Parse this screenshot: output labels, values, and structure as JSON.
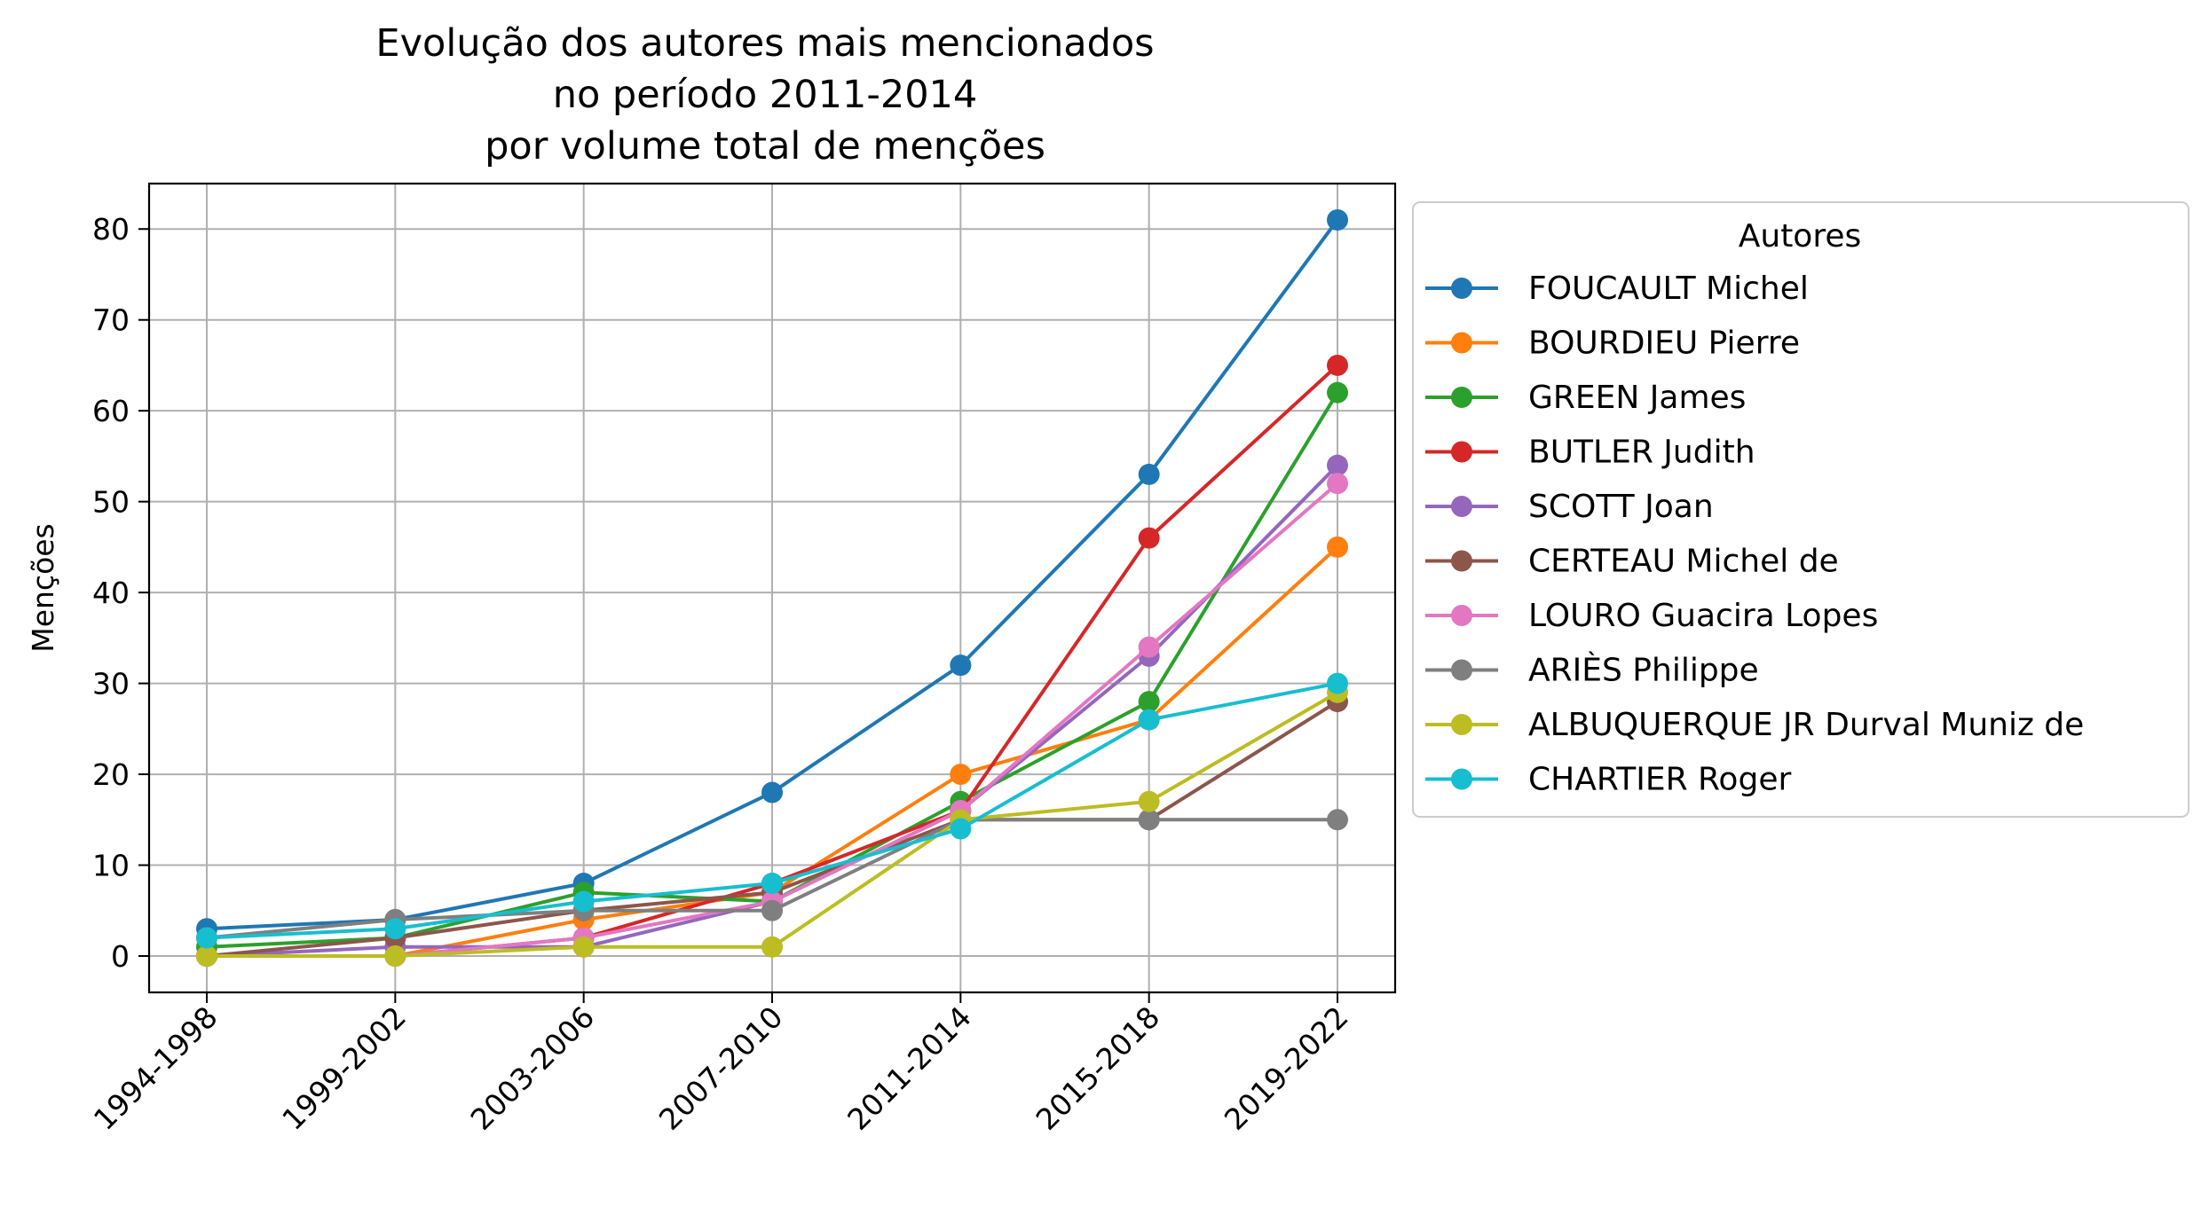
{
  "chart_data": {
    "type": "line",
    "title": [
      "Evolução dos autores mais mencionados",
      "no período 2011-2014",
      "por volume total de menções"
    ],
    "xlabel": "",
    "ylabel": "Menções",
    "categories": [
      "1994-1998",
      "1999-2002",
      "2003-2006",
      "2007-2010",
      "2011-2014",
      "2015-2018",
      "2019-2022"
    ],
    "ylim": [
      -4,
      85
    ],
    "yticks": [
      0,
      10,
      20,
      30,
      40,
      50,
      60,
      70,
      80
    ],
    "grid": true,
    "legend_title": "Autores",
    "legend_position": "outside-right",
    "series": [
      {
        "name": "FOUCAULT Michel",
        "color": "#1f77b4",
        "values": [
          3,
          4,
          8,
          18,
          32,
          53,
          81
        ]
      },
      {
        "name": "BOURDIEU Pierre",
        "color": "#ff7f0e",
        "values": [
          0,
          0,
          4,
          7,
          20,
          26,
          45
        ]
      },
      {
        "name": "GREEN James",
        "color": "#2ca02c",
        "values": [
          1,
          2,
          7,
          6,
          17,
          28,
          62
        ]
      },
      {
        "name": "BUTLER Judith",
        "color": "#d62728",
        "values": [
          0,
          0,
          2,
          8,
          16,
          46,
          65
        ]
      },
      {
        "name": "SCOTT Joan",
        "color": "#9467bd",
        "values": [
          0,
          1,
          1,
          6,
          16,
          33,
          54
        ]
      },
      {
        "name": "CERTEAU Michel de",
        "color": "#8c564b",
        "values": [
          0,
          2,
          5,
          7,
          15,
          15,
          28
        ]
      },
      {
        "name": "LOURO Guacira Lopes",
        "color": "#e377c2",
        "values": [
          0,
          0,
          2,
          6,
          16,
          34,
          52
        ]
      },
      {
        "name": "ARIÈS Philippe",
        "color": "#7f7f7f",
        "values": [
          2,
          4,
          5,
          5,
          15,
          15,
          15
        ]
      },
      {
        "name": "ALBUQUERQUE JR Durval Muniz de",
        "color": "#bcbd22",
        "values": [
          0,
          0,
          1,
          1,
          15,
          17,
          29
        ]
      },
      {
        "name": "CHARTIER Roger",
        "color": "#17becf",
        "values": [
          2,
          3,
          6,
          8,
          14,
          26,
          30
        ]
      }
    ]
  }
}
